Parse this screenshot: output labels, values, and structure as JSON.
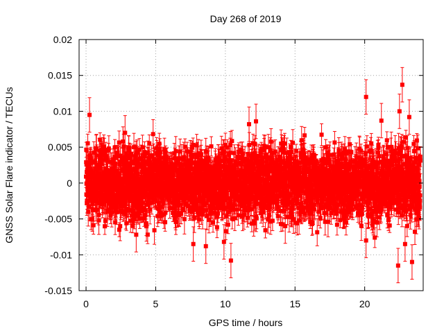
{
  "chart_data": {
    "type": "scatter",
    "title": "Day 268 of 2019",
    "xlabel": "GPS time / hours",
    "ylabel": "GNSS Solar Flare indicator / TECUs",
    "xlim": [
      -0.5,
      24.2
    ],
    "ylim": [
      -0.015,
      0.02
    ],
    "xticks": [
      0,
      5,
      10,
      15,
      20
    ],
    "xtick_labels": [
      "0",
      "5",
      "10",
      "15",
      "20"
    ],
    "yticks": [
      -0.015,
      -0.01,
      -0.005,
      0,
      0.005,
      0.01,
      0.015,
      0.02
    ],
    "ytick_labels": [
      "-0.015",
      "-0.01",
      "-0.005",
      "0",
      "0.005",
      "0.01",
      "0.015",
      "0.02"
    ],
    "grid": true,
    "series": [
      {
        "name": "solar flare indicator",
        "color": "#ff0000",
        "marker": "square",
        "error_bars": true,
        "x_range": [
          0,
          24
        ],
        "sample_interval_hours": 0.0083,
        "noise_std": 0.0025,
        "typical_error": 0.0015,
        "outliers": [
          {
            "x": 0.25,
            "y": 0.0095
          },
          {
            "x": 2.8,
            "y": 0.007
          },
          {
            "x": 3.6,
            "y": -0.0072
          },
          {
            "x": 7.7,
            "y": -0.0085
          },
          {
            "x": 8.6,
            "y": -0.0088
          },
          {
            "x": 9.9,
            "y": -0.0082
          },
          {
            "x": 10.4,
            "y": -0.0108
          },
          {
            "x": 11.7,
            "y": 0.0082
          },
          {
            "x": 12.2,
            "y": 0.0086
          },
          {
            "x": 14.3,
            "y": -0.006
          },
          {
            "x": 20.1,
            "y": 0.012
          },
          {
            "x": 20.1,
            "y": -0.008
          },
          {
            "x": 21.2,
            "y": 0.0087
          },
          {
            "x": 22.4,
            "y": -0.0115
          },
          {
            "x": 22.7,
            "y": 0.0137
          },
          {
            "x": 22.5,
            "y": 0.01
          },
          {
            "x": 22.9,
            "y": -0.0085
          },
          {
            "x": 23.4,
            "y": -0.011
          },
          {
            "x": 23.2,
            "y": 0.0092
          }
        ]
      }
    ]
  }
}
